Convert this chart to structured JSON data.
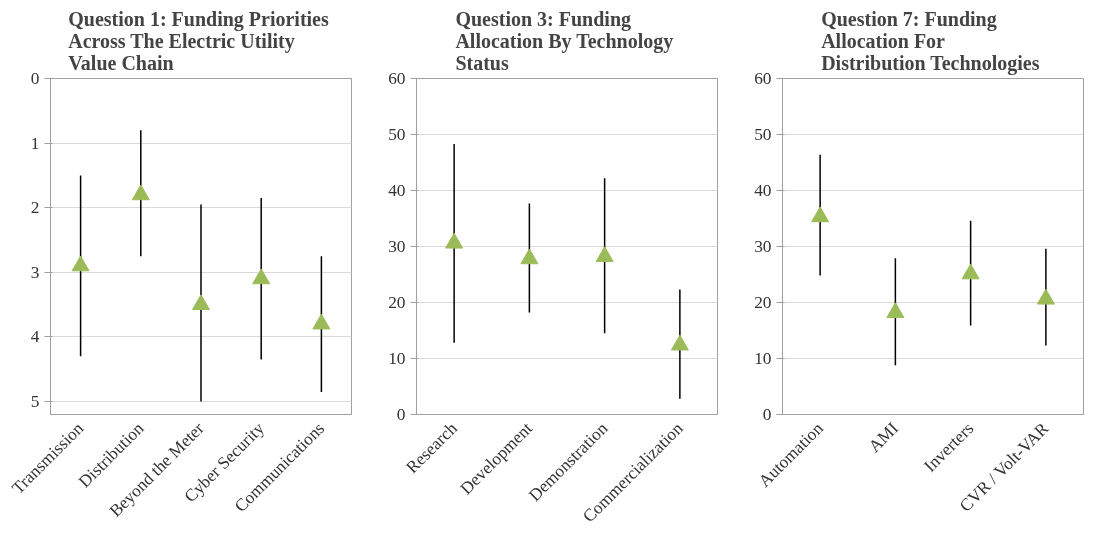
{
  "chart_data": [
    {
      "type": "scatter",
      "title": "Question 1: Funding  Priorities\nAcross The Electric Utility\nValue Chain",
      "categories": [
        "Transmission",
        "Distribution",
        "Beyond the Meter",
        "Cyber Security",
        "Communications"
      ],
      "series": [
        {
          "color": "#9bbb59",
          "values": [
            2.9,
            1.8,
            3.5,
            3.1,
            3.8
          ],
          "errors": [
            [
              1.5,
              4.3
            ],
            [
              0.8,
              2.75
            ],
            [
              1.95,
              5.0
            ],
            [
              1.85,
              4.35
            ],
            [
              2.75,
              4.85
            ]
          ]
        }
      ],
      "ylim": [
        5.2,
        0
      ],
      "yticks": [
        0,
        1,
        2,
        3,
        4,
        5
      ],
      "grid": "y",
      "marker": "triangle"
    },
    {
      "type": "scatter",
      "title": "Question 3: Funding\nAllocation  By Technology\nStatus",
      "categories": [
        "Research",
        "Development",
        "Demonstration",
        "Commercialization"
      ],
      "series": [
        {
          "color": "#9bbb59",
          "values": [
            30.6,
            27.8,
            28.2,
            12.4
          ],
          "errors": [
            [
              12.8,
              48.3
            ],
            [
              18.2,
              37.7
            ],
            [
              14.5,
              42.2
            ],
            [
              2.8,
              22.3
            ]
          ]
        }
      ],
      "ylim": [
        0,
        60
      ],
      "yticks": [
        0,
        10,
        20,
        30,
        40,
        50,
        60
      ],
      "grid": "y",
      "marker": "triangle"
    },
    {
      "type": "scatter",
      "title": "Question 7: Funding\nAllocation For\nDistribution  Technologies",
      "categories": [
        "Automation",
        "AMI",
        "Inverters",
        "CVR / Volt-VAR"
      ],
      "series": [
        {
          "color": "#9bbb59",
          "values": [
            35.3,
            18.2,
            25.1,
            20.6
          ],
          "errors": [
            [
              24.8,
              46.4
            ],
            [
              8.8,
              27.9
            ],
            [
              15.9,
              34.6
            ],
            [
              12.3,
              29.6
            ]
          ]
        }
      ],
      "ylim": [
        0,
        60
      ],
      "yticks": [
        0,
        10,
        20,
        30,
        40,
        50,
        60
      ],
      "grid": "y",
      "marker": "triangle"
    }
  ]
}
